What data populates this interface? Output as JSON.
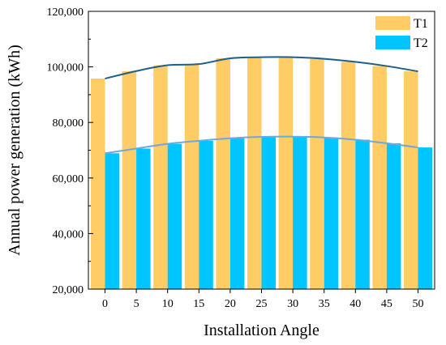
{
  "chart_data": {
    "type": "bar",
    "xlabel": "Installation Angle",
    "ylabel": "Annual power generation (kWh)",
    "categories": [
      "0",
      "5",
      "10",
      "15",
      "20",
      "25",
      "30",
      "35",
      "40",
      "45",
      "50"
    ],
    "ylim": [
      20000,
      120000
    ],
    "yticks": [
      "20,000",
      "40,000",
      "60,000",
      "80,000",
      "100,000",
      "120,000"
    ],
    "ytick_values": [
      20000,
      40000,
      60000,
      80000,
      100000,
      120000
    ],
    "series": [
      {
        "name": "T1",
        "color": "#FFCC66",
        "trend_color": "#1F5F8B",
        "values": [
          95800,
          98500,
          100600,
          101000,
          103100,
          103500,
          103500,
          102900,
          101800,
          100300,
          98400
        ]
      },
      {
        "name": "T2",
        "color": "#00C5FF",
        "trend_color": "#6FA8DC",
        "values": [
          68900,
          70600,
          72300,
          73400,
          74300,
          74800,
          74900,
          74600,
          73800,
          72500,
          71000
        ]
      }
    ],
    "legend": "top-right",
    "grid": false
  }
}
